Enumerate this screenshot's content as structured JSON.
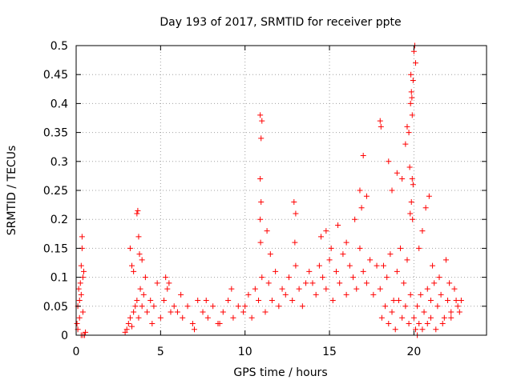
{
  "chart_data": {
    "type": "scatter",
    "title": "Day 193 of 2017, SRMTID for receiver ppte",
    "xlabel": "GPS time / hours",
    "ylabel": "SRMTID / TECUs",
    "xlim": [
      0,
      24.3
    ],
    "ylim": [
      0,
      0.5
    ],
    "xticks": [
      0,
      5,
      10,
      15,
      20
    ],
    "xtick_labels": [
      "0",
      "5",
      "10",
      "15",
      "20"
    ],
    "yticks": [
      0,
      0.05,
      0.1,
      0.15,
      0.2,
      0.25,
      0.3,
      0.35,
      0.4,
      0.45,
      0.5
    ],
    "ytick_labels": [
      "0",
      "0.05",
      "0.1",
      "0.15",
      "0.2",
      "0.25",
      "0.3",
      "0.35",
      "0.4",
      "0.45",
      "0.5"
    ],
    "grid": true,
    "marker": "plus",
    "color": "#ff0000",
    "series": [
      {
        "name": "SRMTID",
        "x": [
          0.05,
          0.1,
          0.15,
          0.2,
          0.25,
          0.3,
          0.35,
          0.4,
          0.1,
          0.2,
          0.3,
          0.4,
          0.5,
          0.55,
          0.35,
          0.45,
          0.3,
          0.4,
          2.9,
          3.0,
          3.1,
          3.2,
          3.3,
          3.4,
          3.5,
          3.6,
          3.7,
          3.8,
          3.9,
          4.0,
          4.2,
          4.4,
          4.6,
          4.8,
          5.0,
          5.2,
          5.4,
          5.6,
          5.8,
          3.2,
          3.3,
          3.6,
          3.65,
          3.7,
          3.75,
          3.4,
          3.9,
          4.1,
          5.3,
          5.5,
          4.5,
          6.0,
          6.3,
          6.6,
          6.9,
          7.2,
          7.5,
          7.8,
          8.1,
          8.4,
          8.7,
          9.0,
          9.3,
          9.6,
          9.9,
          6.2,
          7.0,
          7.7,
          8.5,
          9.2,
          10.0,
          10.2,
          10.4,
          10.6,
          10.8,
          11.0,
          11.2,
          11.4,
          11.6,
          11.8,
          12.0,
          12.2,
          12.4,
          12.6,
          12.8,
          13.0,
          13.2,
          13.4,
          13.6,
          13.8,
          10.9,
          10.95,
          11.0,
          10.9,
          10.95,
          10.9,
          10.92,
          11.3,
          11.5,
          12.9,
          13.0,
          12.95,
          14.0,
          14.2,
          14.4,
          14.6,
          14.8,
          15.0,
          15.2,
          15.4,
          15.6,
          15.8,
          16.0,
          16.2,
          16.4,
          16.6,
          16.8,
          17.0,
          17.2,
          17.4,
          17.6,
          17.8,
          14.5,
          14.8,
          15.1,
          15.5,
          16.0,
          16.5,
          16.8,
          17.0,
          17.2,
          16.9,
          18.0,
          18.2,
          18.4,
          18.6,
          18.8,
          19.0,
          19.2,
          19.4,
          19.6,
          19.8,
          18.1,
          18.3,
          18.5,
          18.7,
          18.9,
          19.1,
          19.3,
          19.5,
          19.7,
          18.0,
          18.05,
          18.5,
          18.7,
          19.0,
          19.3,
          19.5,
          19.6,
          19.7,
          19.8,
          19.85,
          19.9,
          19.95,
          20.0,
          20.05,
          20.1,
          19.75,
          19.82,
          19.88,
          19.9,
          19.95,
          19.85,
          19.78,
          19.92,
          20.0,
          20.2,
          20.4,
          20.6,
          20.8,
          21.0,
          21.2,
          21.4,
          21.6,
          21.8,
          22.0,
          22.2,
          22.4,
          22.6,
          22.8,
          20.3,
          20.5,
          20.7,
          21.1,
          21.5,
          22.1,
          22.5,
          20.1,
          20.2,
          20.3,
          20.5,
          20.8,
          21.0,
          21.3,
          21.7,
          22.2,
          22.7,
          20.9,
          21.9
        ],
        "y": [
          0.02,
          0.05,
          0.08,
          0.06,
          0.09,
          0.12,
          0.17,
          0.04,
          0.01,
          0.03,
          0.07,
          0.1,
          0.0,
          0.005,
          0.15,
          0.11,
          0.0,
          0.0,
          0.005,
          0.01,
          0.02,
          0.03,
          0.015,
          0.04,
          0.05,
          0.06,
          0.03,
          0.08,
          0.05,
          0.07,
          0.04,
          0.06,
          0.05,
          0.09,
          0.03,
          0.06,
          0.08,
          0.04,
          0.05,
          0.15,
          0.12,
          0.21,
          0.215,
          0.17,
          0.14,
          0.11,
          0.13,
          0.1,
          0.1,
          0.09,
          0.02,
          0.04,
          0.03,
          0.05,
          0.02,
          0.06,
          0.04,
          0.03,
          0.05,
          0.02,
          0.04,
          0.06,
          0.03,
          0.05,
          0.04,
          0.07,
          0.01,
          0.06,
          0.02,
          0.08,
          0.05,
          0.07,
          0.03,
          0.08,
          0.06,
          0.1,
          0.04,
          0.09,
          0.06,
          0.11,
          0.05,
          0.08,
          0.07,
          0.1,
          0.06,
          0.12,
          0.08,
          0.05,
          0.09,
          0.11,
          0.38,
          0.34,
          0.37,
          0.27,
          0.23,
          0.2,
          0.16,
          0.18,
          0.14,
          0.23,
          0.21,
          0.16,
          0.09,
          0.07,
          0.12,
          0.1,
          0.08,
          0.13,
          0.06,
          0.11,
          0.09,
          0.14,
          0.07,
          0.12,
          0.1,
          0.08,
          0.15,
          0.11,
          0.09,
          0.13,
          0.07,
          0.12,
          0.17,
          0.18,
          0.15,
          0.19,
          0.16,
          0.2,
          0.25,
          0.31,
          0.24,
          0.22,
          0.08,
          0.12,
          0.1,
          0.14,
          0.06,
          0.11,
          0.15,
          0.09,
          0.13,
          0.07,
          0.03,
          0.05,
          0.02,
          0.04,
          0.01,
          0.06,
          0.03,
          0.05,
          0.02,
          0.37,
          0.36,
          0.3,
          0.25,
          0.28,
          0.27,
          0.33,
          0.36,
          0.35,
          0.4,
          0.42,
          0.38,
          0.44,
          0.49,
          0.5,
          0.47,
          0.29,
          0.45,
          0.41,
          0.27,
          0.26,
          0.23,
          0.21,
          0.2,
          0.03,
          0.05,
          0.07,
          0.04,
          0.08,
          0.06,
          0.09,
          0.05,
          0.07,
          0.03,
          0.06,
          0.04,
          0.08,
          0.05,
          0.06,
          0.15,
          0.18,
          0.22,
          0.12,
          0.1,
          0.09,
          0.06,
          0.01,
          0.0,
          0.02,
          0.01,
          0.02,
          0.03,
          0.01,
          0.02,
          0.03,
          0.04,
          0.24,
          0.13
        ]
      }
    ]
  }
}
